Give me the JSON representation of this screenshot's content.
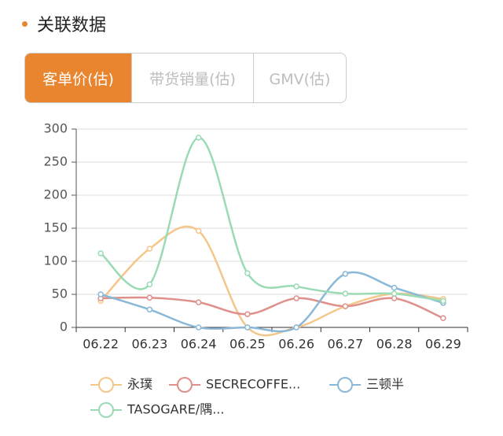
{
  "section_title": "关联数据",
  "tabs": [
    "客单价(估)",
    "带货销量(估)",
    "GMV(估)"
  ],
  "chart_data": {
    "type": "line",
    "categories": [
      "06.22",
      "06.23",
      "06.24",
      "06.25",
      "06.26",
      "06.27",
      "06.28",
      "06.29"
    ],
    "series": [
      {
        "name": "永璞",
        "color": "#f5c68a",
        "values": [
          40,
          119,
          146,
          0,
          0,
          32,
          51,
          43
        ]
      },
      {
        "name": "SECRECOFFE...",
        "color": "#e0908a",
        "values": [
          44,
          45,
          38,
          20,
          44,
          32,
          44,
          14
        ]
      },
      {
        "name": "三顿半",
        "color": "#8ab8d8",
        "values": [
          50,
          27,
          0,
          0,
          0,
          81,
          60,
          37
        ]
      },
      {
        "name": "TASOGARE/隅...",
        "color": "#9adbb5",
        "values": [
          112,
          65,
          287,
          82,
          62,
          51,
          51,
          40
        ]
      }
    ],
    "ylim": [
      0,
      300
    ],
    "yticks": [
      0,
      50,
      100,
      150,
      200,
      250,
      300
    ],
    "grid": true,
    "smooth": true
  }
}
